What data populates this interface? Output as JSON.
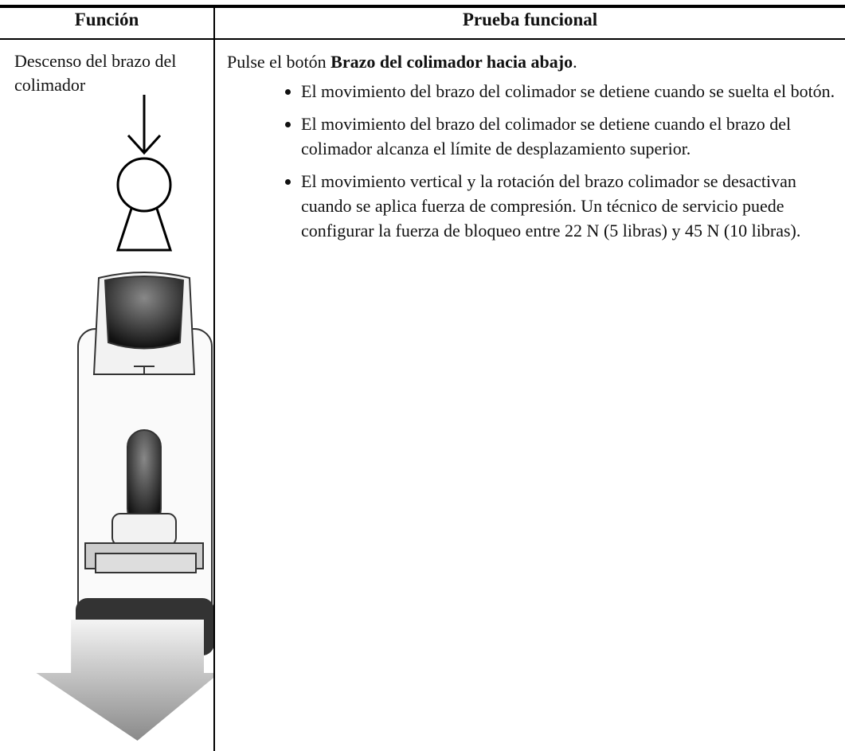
{
  "table": {
    "header": [
      "Función",
      "Prueba funcional"
    ],
    "rows": [
      {
        "function": "Descenso del brazo del colimador",
        "test": {
          "intro_prefix": "Pulse el botón ",
          "intro_bold": "Brazo del colimador hacia abajo",
          "intro_suffix": ".",
          "bullets": [
            "El movimiento del brazo del colimador se detiene cuando se suelta el botón.",
            "El movimiento del brazo del colimador se detiene cuando el brazo del colimador alcanza el límite de desplazamiento superior.",
            "El movimiento vertical y la rotación del brazo colimador se desactivan cuando se aplica fuerza de compresión. Un técnico de servicio puede configurar la fuerza de bloqueo entre 22 N (5 libras) y 45 N (10 libras)."
          ]
        }
      }
    ]
  }
}
